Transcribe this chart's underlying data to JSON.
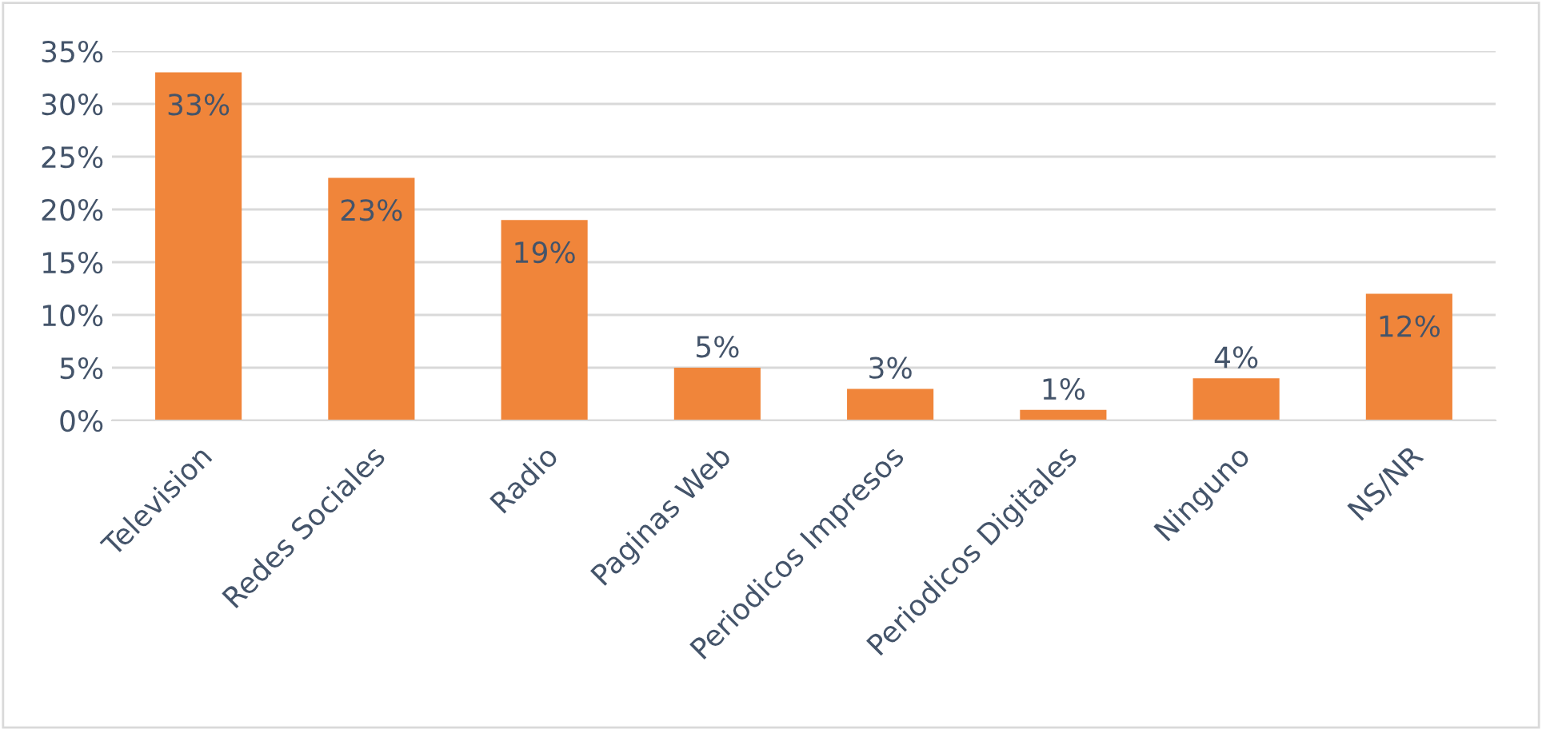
{
  "chart_data": {
    "type": "bar",
    "categories": [
      "Television",
      "Redes Sociales",
      "Radio",
      "Paginas Web",
      "Periodicos Impresos",
      "Periodicos Digitales",
      "Ninguno",
      "NS/NR"
    ],
    "values": [
      33,
      23,
      19,
      5,
      3,
      1,
      4,
      12
    ],
    "value_labels": [
      "33%",
      "23%",
      "19%",
      "5%",
      "3%",
      "1%",
      "4%",
      "12%"
    ],
    "color": "#f0853a",
    "ylim": [
      0,
      35
    ],
    "yticks": [
      {
        "value": 0,
        "label": "0%"
      },
      {
        "value": 5,
        "label": "5%"
      },
      {
        "value": 10,
        "label": "10%"
      },
      {
        "value": 15,
        "label": "15%"
      },
      {
        "value": 20,
        "label": "20%"
      },
      {
        "value": 25,
        "label": "25%"
      },
      {
        "value": 30,
        "label": "30%"
      },
      {
        "value": 35,
        "label": "35%"
      }
    ],
    "grid": "y"
  }
}
